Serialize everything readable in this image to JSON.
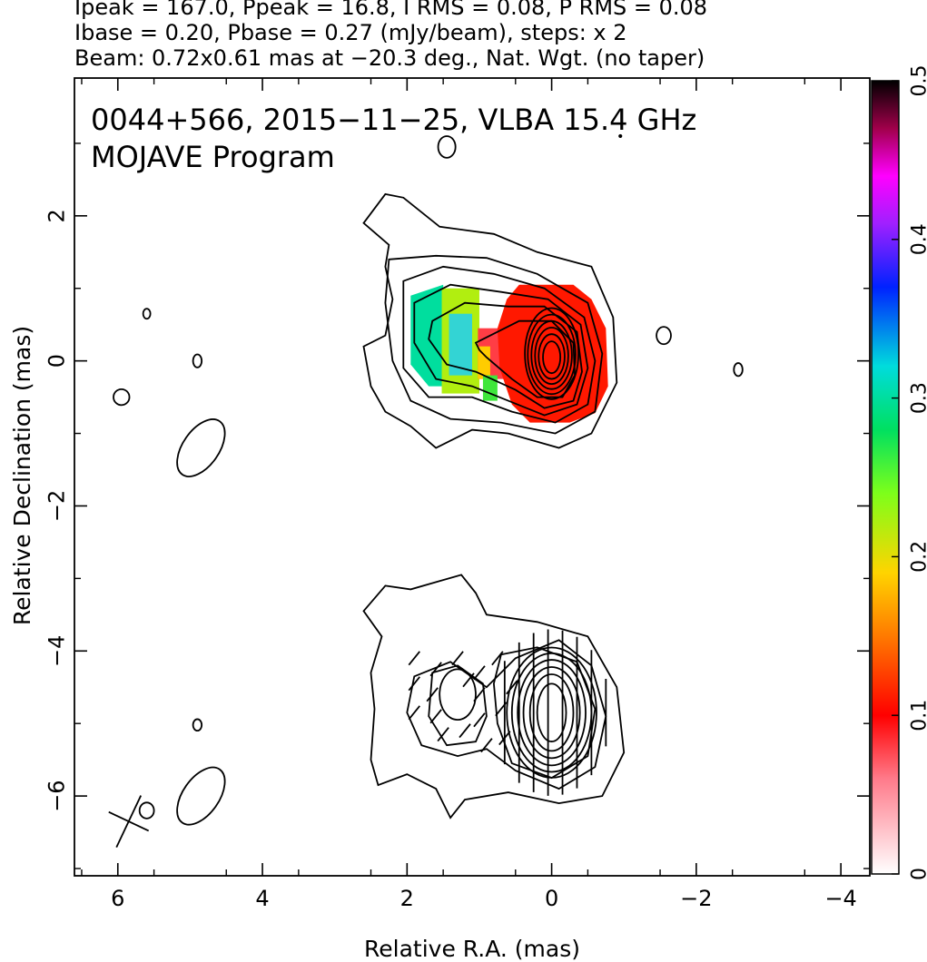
{
  "header": {
    "line1": "Ipeak = 167.0, Ppeak = 16.8, I RMS = 0.08, P RMS = 0.08",
    "line2": "Ibase = 0.20, Pbase = 0.27 (mJy/beam), steps: x 2",
    "line3": "Beam: 0.72x0.61 mas at −20.3 deg., Nat. Wgt. (no taper)"
  },
  "chart_data": [
    {
      "type": "heatmap",
      "panel": "polarization",
      "title": "0044+566, 2015−11−25, VLBA 15.4 GHz",
      "subtitle": "MOJAVE Program",
      "xlabel": "Relative R.A. (mas)",
      "ylabel": "Relative Declination (mas)",
      "xlim": [
        6.6,
        -4.4
      ],
      "ylim": [
        -7.1,
        3.9
      ],
      "x_ticks": [
        6,
        4,
        2,
        0,
        -2,
        -4
      ],
      "y_ticks": [
        2,
        0,
        -2,
        -4,
        -6
      ],
      "x_tick_labels": [
        "6",
        "4",
        "2",
        "0",
        "−2",
        "−4"
      ],
      "y_tick_labels": [
        "2",
        "0",
        "−2",
        "−4",
        "−6"
      ],
      "colorbar": {
        "range": [
          0,
          0.5
        ],
        "ticks": [
          0,
          0.1,
          0.2,
          0.3,
          0.4,
          0.5
        ],
        "tick_labels": [
          "0",
          "0.1",
          "0.2",
          "0.3",
          "0.4",
          "0.5"
        ]
      },
      "intensity_contours_mJy_per_beam": [
        0.2,
        0.4,
        0.8,
        1.6,
        3.2,
        6.4,
        12.8,
        25.6,
        51.2,
        102.4
      ],
      "fractional_polarization_regions": [
        {
          "component": "core",
          "ra_range": [
            -0.85,
            0.8
          ],
          "dec_range": [
            -0.85,
            1.05
          ],
          "value": 0.11
        },
        {
          "component": "inner jet",
          "ra_range": [
            0.5,
            1.0
          ],
          "dec_range": [
            -0.25,
            0.5
          ],
          "value": 0.08
        },
        {
          "component": "jet",
          "ra_range": [
            1.0,
            1.45
          ],
          "dec_range": [
            -0.45,
            0.95
          ],
          "value": 0.22
        },
        {
          "component": "jet",
          "ra_range": [
            1.45,
            2.0
          ],
          "dec_range": [
            -0.35,
            1.0
          ],
          "value": 0.3
        }
      ]
    },
    {
      "type": "heatmap",
      "panel": "evpa",
      "xlim": [
        6.6,
        -4.4
      ],
      "ylim": [
        -7.1,
        3.9
      ],
      "evpa_vectors": {
        "core": {
          "ra_range": [
            -0.75,
            0.65
          ],
          "dec": -4.85,
          "angle_deg": 0
        },
        "jet": {
          "ra_range": [
            0.9,
            2.0
          ],
          "dec": -4.6,
          "angle_deg": 110
        }
      },
      "beam": {
        "ra": 5.85,
        "dec": -6.35,
        "major_mas": 0.72,
        "minor_mas": 0.61,
        "pa_deg": -20.3
      }
    }
  ],
  "colors": {
    "axis": "#000000",
    "contour": "#000000",
    "core_pol": "#ff5a0a",
    "jet_pol_green": "#3fe63c",
    "jet_pol_cyan": "#33d4d4"
  }
}
